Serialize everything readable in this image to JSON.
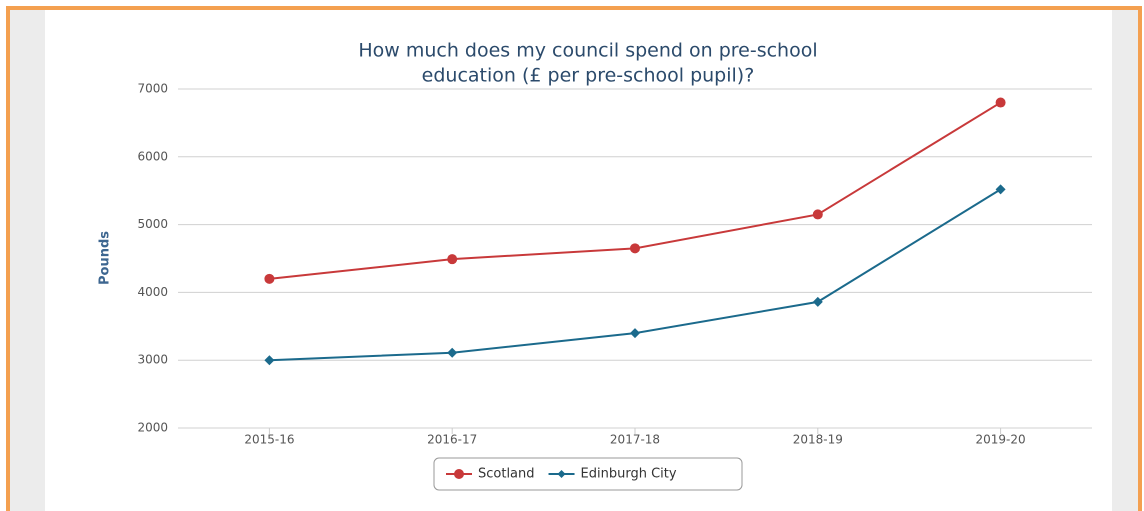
{
  "chart_data": {
    "type": "line",
    "title": [
      "How much does my council spend on pre-school",
      "education (£ per pre-school pupil)?"
    ],
    "y_axis_label": "Pounds",
    "categories": [
      "2015-16",
      "2016-17",
      "2017-18",
      "2018-19",
      "2019-20"
    ],
    "series": [
      {
        "name": "Scotland",
        "color": "#c8393a",
        "marker": "circle",
        "values": [
          4200,
          4490,
          4650,
          5150,
          6800
        ]
      },
      {
        "name": "Edinburgh City",
        "color": "#1b6a8c",
        "marker": "diamond",
        "values": [
          3000,
          3110,
          3400,
          3860,
          5520
        ]
      }
    ],
    "ylim": [
      2000,
      7000
    ],
    "yticks": [
      2000,
      3000,
      4000,
      5000,
      6000,
      7000
    ],
    "grid": true,
    "legend": "bottom"
  }
}
